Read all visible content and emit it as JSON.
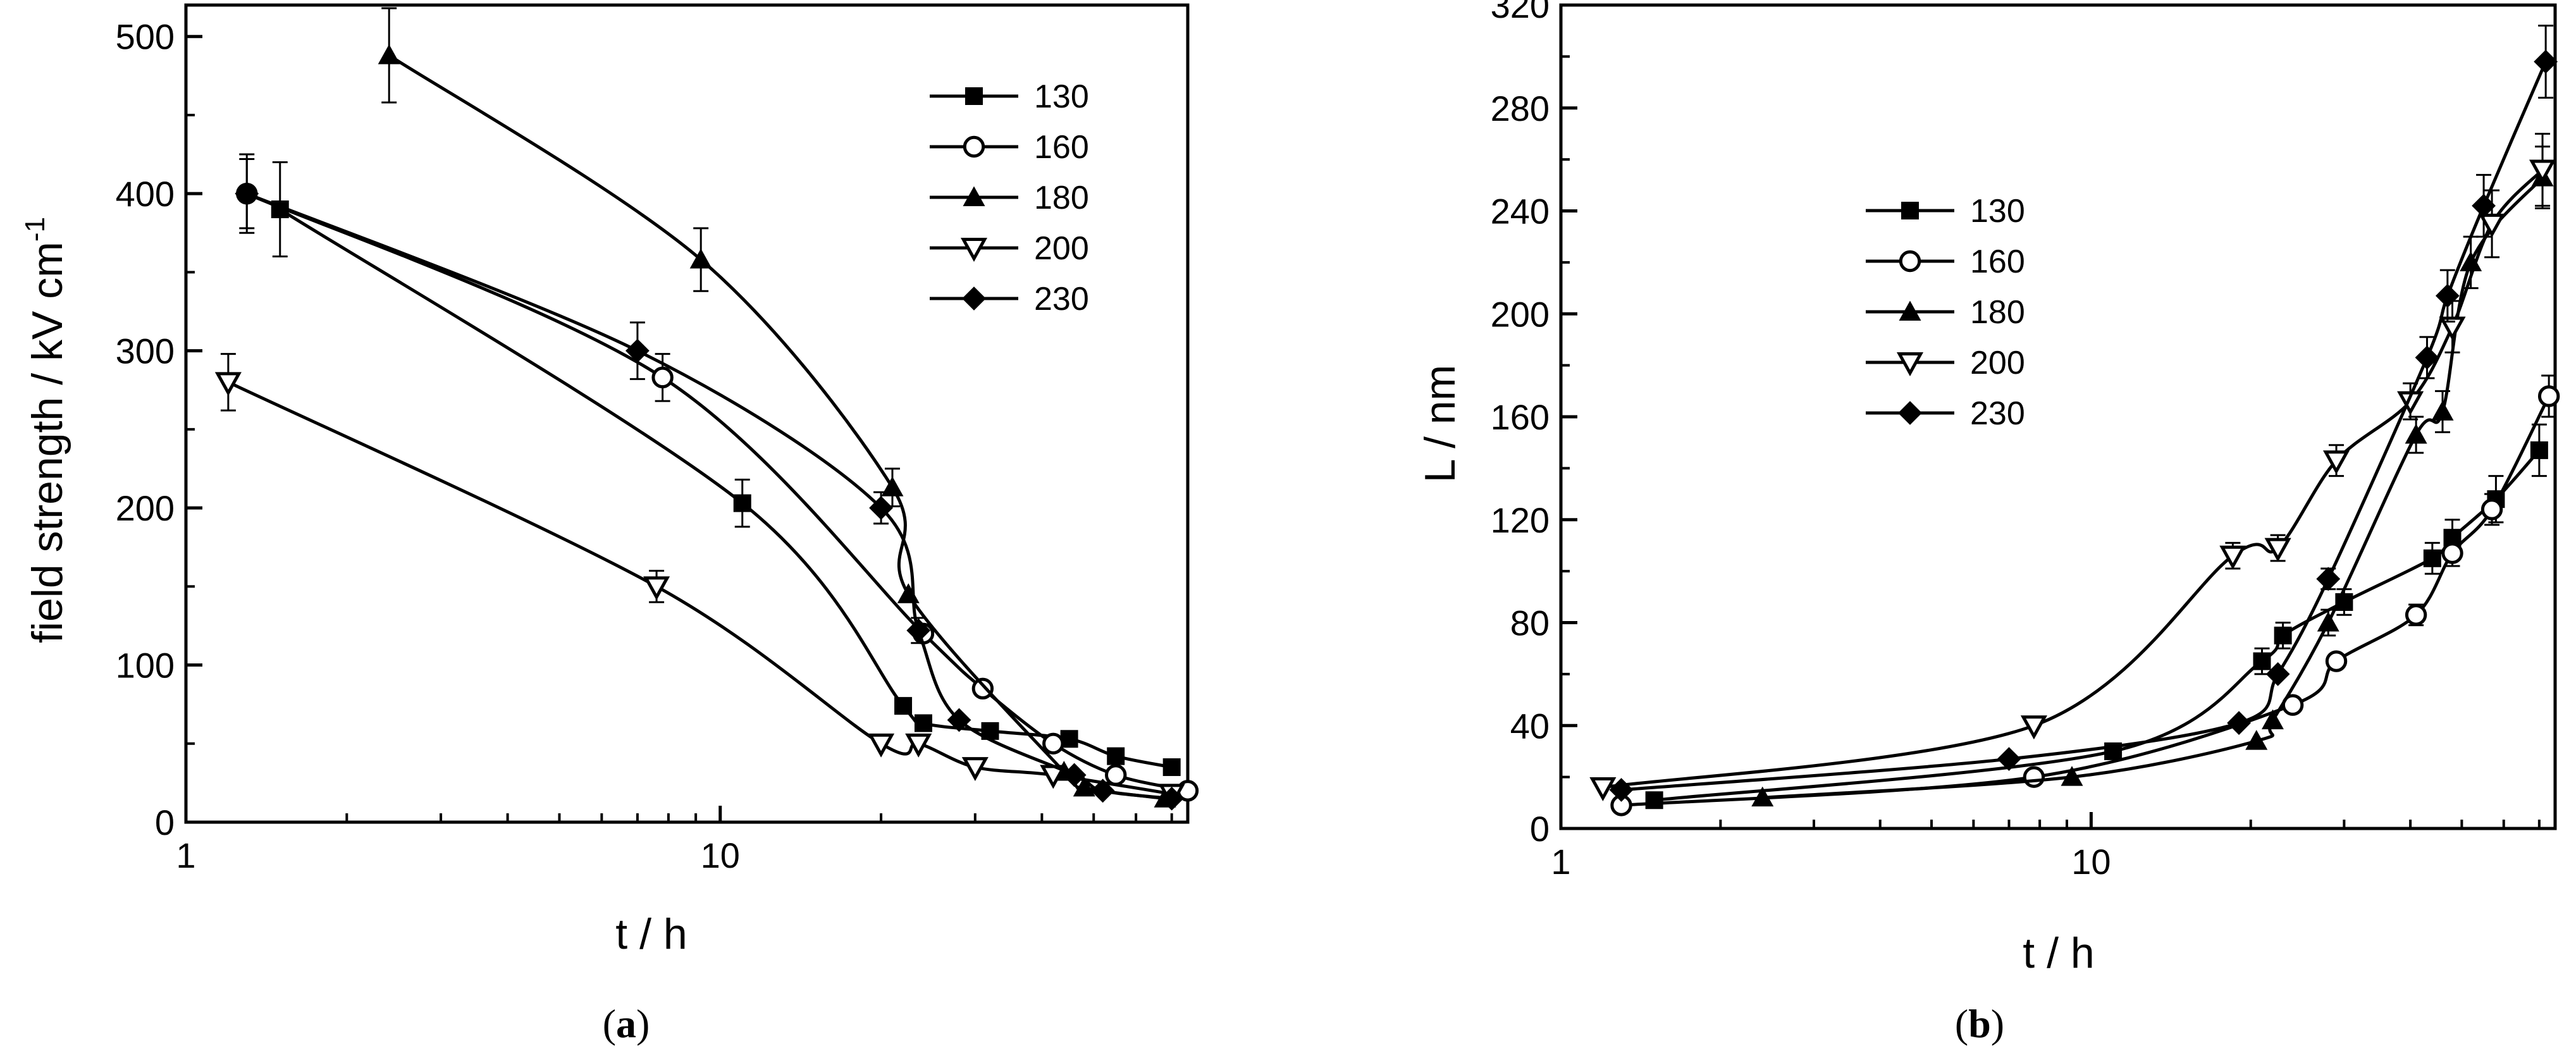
{
  "chart_data": [
    {
      "type": "line",
      "panel": "a",
      "caption": "a",
      "xlabel": "t / h",
      "ylabel": "field strength / kV cm",
      "ylabel_superscript": "-1",
      "x_scale": "log",
      "xlim": [
        1,
        75
      ],
      "ylim": [
        0,
        520
      ],
      "x_ticks": [
        1,
        10
      ],
      "x_tick_labels": [
        "1",
        "10"
      ],
      "y_ticks": [
        0,
        100,
        200,
        300,
        400,
        500
      ],
      "y_tick_labels": [
        "0",
        "100",
        "200",
        "300",
        "400",
        "500"
      ],
      "legend_position": "top-right",
      "series": [
        {
          "name": "130",
          "marker": "square-filled",
          "x": [
            1.5,
            11,
            22,
            24,
            32,
            45,
            55,
            70
          ],
          "y": [
            390,
            203,
            74,
            63,
            58,
            53,
            42,
            35
          ],
          "err": [
            30,
            15,
            0,
            0,
            0,
            0,
            0,
            0
          ]
        },
        {
          "name": "160",
          "marker": "circle-open",
          "x": [
            1.3,
            7.8,
            24,
            31,
            42,
            55,
            75
          ],
          "y": [
            400,
            283,
            120,
            85,
            50,
            30,
            20
          ],
          "err": [
            25,
            15,
            0,
            0,
            0,
            0,
            0
          ]
        },
        {
          "name": "180",
          "marker": "triangle-filled",
          "x": [
            2.4,
            9.2,
            21,
            22.5,
            44,
            48,
            68
          ],
          "y": [
            488,
            358,
            213,
            145,
            32,
            22,
            15
          ],
          "err": [
            30,
            20,
            12,
            0,
            0,
            0,
            0
          ]
        },
        {
          "name": "200",
          "marker": "triangle-down-open",
          "x": [
            1.2,
            7.6,
            20,
            23.5,
            30,
            42,
            70
          ],
          "y": [
            280,
            150,
            50,
            50,
            35,
            30,
            18
          ],
          "err": [
            18,
            10,
            0,
            0,
            0,
            0,
            0
          ]
        },
        {
          "name": "230",
          "marker": "diamond-filled",
          "x": [
            1.3,
            7.0,
            20,
            23.5,
            28,
            46,
            52,
            70
          ],
          "y": [
            400,
            300,
            200,
            122,
            65,
            30,
            20,
            15
          ],
          "err": [
            22,
            18,
            10,
            8,
            0,
            0,
            0,
            0
          ]
        }
      ]
    },
    {
      "type": "line",
      "panel": "b",
      "caption": "b",
      "xlabel": "t / h",
      "ylabel": "L / nm",
      "x_scale": "log",
      "xlim": [
        1,
        75
      ],
      "ylim": [
        0,
        320
      ],
      "x_ticks": [
        1,
        10
      ],
      "x_tick_labels": [
        "1",
        "10"
      ],
      "y_ticks": [
        0,
        40,
        80,
        120,
        160,
        200,
        240,
        280,
        320
      ],
      "y_tick_labels": [
        "0",
        "40",
        "80",
        "120",
        "160",
        "200",
        "240",
        "280",
        "320"
      ],
      "legend_position": "upper-left",
      "series": [
        {
          "name": "130",
          "marker": "square-filled",
          "x": [
            1.5,
            11,
            21,
            23,
            30,
            44,
            48,
            58,
            70
          ],
          "y": [
            11,
            30,
            65,
            75,
            88,
            105,
            113,
            128,
            147
          ],
          "err": [
            0,
            0,
            5,
            5,
            5,
            6,
            7,
            9,
            10
          ]
        },
        {
          "name": "160",
          "marker": "circle-open",
          "x": [
            1.3,
            7.8,
            24,
            29,
            41,
            48,
            57,
            73
          ],
          "y": [
            9,
            20,
            48,
            65,
            83,
            107,
            124,
            168
          ],
          "err": [
            0,
            0,
            0,
            0,
            4,
            5,
            6,
            8
          ]
        },
        {
          "name": "180",
          "marker": "triangle-filled",
          "x": [
            2.4,
            9.2,
            20.5,
            22,
            28,
            41,
            46,
            52,
            71
          ],
          "y": [
            12,
            20,
            34,
            42,
            80,
            153,
            162,
            220,
            253
          ],
          "err": [
            0,
            0,
            0,
            0,
            5,
            7,
            8,
            10,
            12
          ]
        },
        {
          "name": "200",
          "marker": "triangle-down-open",
          "x": [
            1.2,
            7.8,
            18.5,
            22.5,
            29,
            40,
            48,
            57,
            71
          ],
          "y": [
            16,
            40,
            106,
            109,
            143,
            166,
            195,
            235,
            256
          ],
          "err": [
            0,
            0,
            5,
            5,
            6,
            7,
            10,
            13,
            14
          ]
        },
        {
          "name": "230",
          "marker": "diamond-filled",
          "x": [
            1.3,
            7.0,
            19,
            22.5,
            28,
            43,
            47,
            55,
            72
          ],
          "y": [
            15,
            27,
            41,
            60,
            97,
            183,
            207,
            242,
            298
          ],
          "err": [
            0,
            0,
            0,
            0,
            4,
            8,
            10,
            12,
            14
          ]
        }
      ]
    }
  ]
}
